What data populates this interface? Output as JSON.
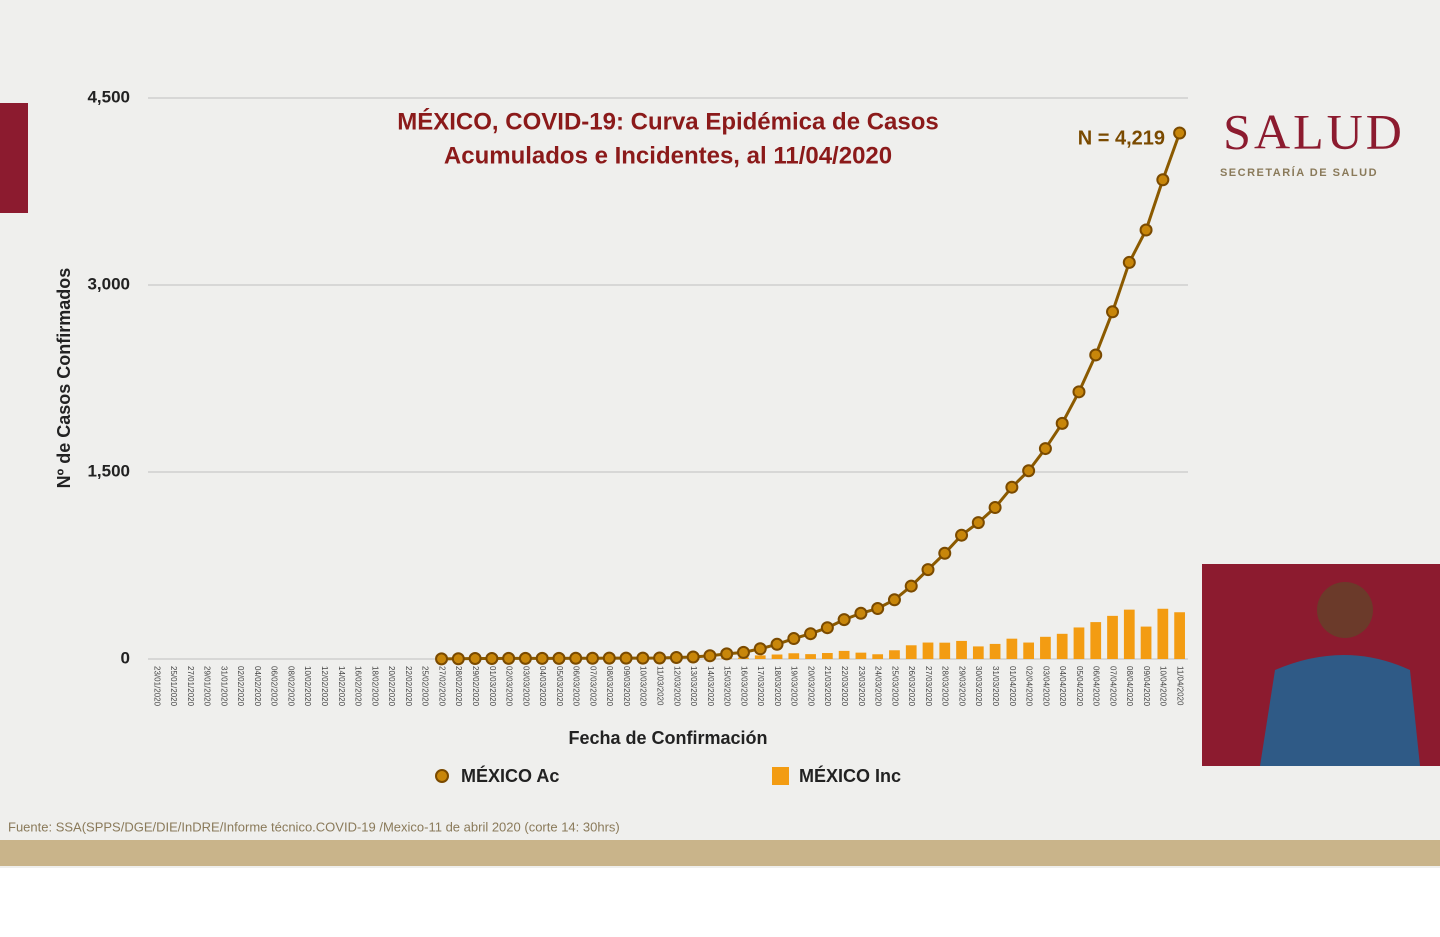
{
  "chart_data": {
    "type": "line",
    "title": [
      "MÉXICO, COVID-19: Curva Epidémica de Casos",
      "Acumulados e Incidentes, al 11/04/2020"
    ],
    "y_label": "Nº de Casos Confirmados",
    "x_label": "Fecha de Confirmación",
    "annotation": "N = 4,219",
    "categories": [
      "23/01/2020",
      "25/01/2020",
      "27/01/2020",
      "29/01/2020",
      "31/01/2020",
      "02/02/2020",
      "04/02/2020",
      "06/02/2020",
      "08/02/2020",
      "10/02/2020",
      "12/02/2020",
      "14/02/2020",
      "16/02/2020",
      "18/02/2020",
      "20/02/2020",
      "22/02/2020",
      "25/02/2020",
      "27/02/2020",
      "28/02/2020",
      "29/02/2020",
      "01/03/2020",
      "02/03/2020",
      "03/03/2020",
      "04/03/2020",
      "05/03/2020",
      "06/03/2020",
      "07/03/2020",
      "08/03/2020",
      "09/03/2020",
      "10/03/2020",
      "11/03/2020",
      "12/03/2020",
      "13/03/2020",
      "14/03/2020",
      "15/03/2020",
      "16/03/2020",
      "17/03/2020",
      "18/03/2020",
      "19/03/2020",
      "20/03/2020",
      "21/03/2020",
      "22/03/2020",
      "23/03/2020",
      "24/03/2020",
      "25/03/2020",
      "26/03/2020",
      "27/03/2020",
      "28/03/2020",
      "29/03/2020",
      "30/03/2020",
      "31/03/2020",
      "01/04/2020",
      "02/04/2020",
      "03/04/2020",
      "04/04/2020",
      "05/04/2020",
      "06/04/2020",
      "07/04/2020",
      "08/04/2020",
      "09/04/2020",
      "10/04/2020",
      "11/04/2020"
    ],
    "series": [
      {
        "name": "MÉXICO Ac",
        "type": "line",
        "color": "#c8860a",
        "values": [
          null,
          null,
          null,
          null,
          null,
          null,
          null,
          null,
          null,
          null,
          null,
          null,
          null,
          null,
          null,
          null,
          null,
          1,
          2,
          4,
          4,
          5,
          5,
          5,
          5,
          6,
          6,
          7,
          7,
          7,
          8,
          12,
          16,
          26,
          41,
          53,
          82,
          118,
          164,
          203,
          251,
          316,
          367,
          405,
          475,
          585,
          717,
          848,
          993,
          1094,
          1215,
          1378,
          1510,
          1688,
          1890,
          2143,
          2439,
          2785,
          3181,
          3441,
          3844,
          4219
        ]
      },
      {
        "name": "MÉXICO Inc",
        "type": "bar",
        "color": "#f39c12",
        "values": [
          null,
          null,
          null,
          null,
          null,
          null,
          null,
          null,
          null,
          null,
          null,
          null,
          null,
          null,
          null,
          null,
          null,
          1,
          1,
          2,
          0,
          1,
          0,
          0,
          0,
          1,
          0,
          1,
          0,
          0,
          1,
          4,
          4,
          10,
          15,
          12,
          29,
          36,
          46,
          39,
          48,
          65,
          51,
          38,
          70,
          110,
          132,
          131,
          145,
          101,
          121,
          163,
          132,
          178,
          202,
          253,
          296,
          346,
          396,
          260,
          403,
          375
        ]
      }
    ],
    "ylim": [
      0,
      4500
    ],
    "yticks": [
      0,
      {
        "value": 1500,
        "label": "1,500"
      },
      {
        "value": 3000,
        "label": "3,000"
      },
      {
        "value": 4500,
        "label": "4,500"
      }
    ],
    "grid": true
  },
  "branding": {
    "logo": "SALUD",
    "subtitle": "SECRETARÍA DE SALUD"
  },
  "source": "Fuente: SSA(SPPS/DGE/DIE/InDRE/Informe técnico.COVID-19 /Mexico-11 de abril 2020 (corte 14: 30hrs)"
}
